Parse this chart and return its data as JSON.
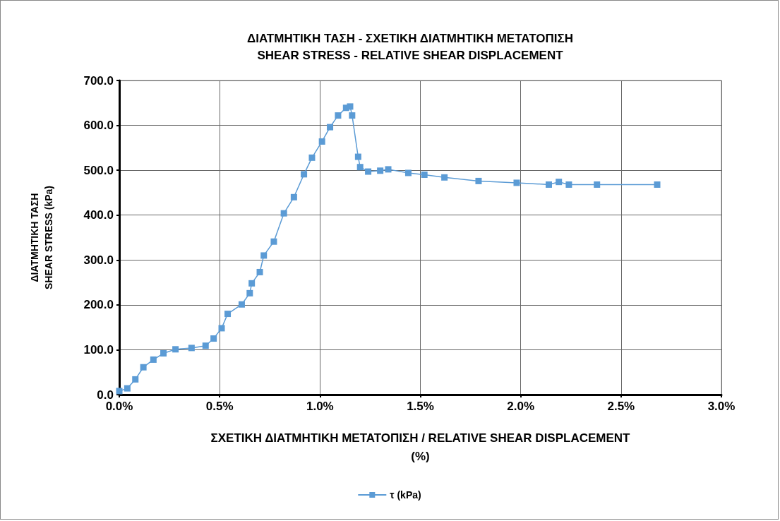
{
  "chart_data": {
    "type": "line",
    "title": "ΔΙΑΤΜΗΤΙΚΗ ΤΑΣΗ - ΣΧΕΤΙΚΗ ΔΙΑΤΜΗΤΙΚΗ ΜΕΤΑΤΟΠΙΣΗ\nSHEAR STRESS - RELATIVE SHEAR DISPLACEMENT",
    "xlabel": "ΣΧΕΤΙΚΗ ΔΙΑΤΜΗΤΙΚΗ ΜΕΤΑΤΟΠΙΣΗ / RELATIVE SHEAR DISPLACEMENT\n(%)",
    "ylabel": "ΔΙΑΤΜΗΤΙΚΗ ΤΑΣΗ\nSHEAR STRESS (kPa)",
    "series": [
      {
        "name": "τ (kPa)",
        "color": "#5b9bd5",
        "x": [
          0,
          0.04,
          0.08,
          0.12,
          0.17,
          0.22,
          0.28,
          0.36,
          0.43,
          0.47,
          0.51,
          0.54,
          0.61,
          0.65,
          0.66,
          0.7,
          0.72,
          0.77,
          0.82,
          0.87,
          0.92,
          0.96,
          1.01,
          1.05,
          1.09,
          1.13,
          1.15,
          1.16,
          1.19,
          1.2,
          1.24,
          1.3,
          1.34,
          1.44,
          1.52,
          1.62,
          1.79,
          1.98,
          2.14,
          2.19,
          2.24,
          2.38,
          2.68
        ],
        "values": [
          8,
          14,
          34,
          61,
          78,
          92,
          101,
          104,
          109,
          125,
          148,
          180,
          201,
          226,
          248,
          273,
          310,
          341,
          404,
          440,
          491,
          528,
          564,
          596,
          622,
          639,
          642,
          622,
          530,
          507,
          497,
          499,
          502,
          494,
          490,
          484,
          476,
          472,
          468,
          474,
          468,
          468,
          468
        ]
      }
    ],
    "xlim": [
      0,
      3
    ],
    "xticks": [
      {
        "value": 0,
        "label": "0.0%"
      },
      {
        "value": 0.5,
        "label": "0.5%"
      },
      {
        "value": 1,
        "label": "1.0%"
      },
      {
        "value": 1.5,
        "label": "1.5%"
      },
      {
        "value": 2,
        "label": "2.0%"
      },
      {
        "value": 2.5,
        "label": "2.5%"
      },
      {
        "value": 3,
        "label": "3.0%"
      }
    ],
    "ylim": [
      0,
      700
    ],
    "yticks": [
      {
        "value": 0,
        "label": "0.0"
      },
      {
        "value": 100,
        "label": "100.0"
      },
      {
        "value": 200,
        "label": "200.0"
      },
      {
        "value": 300,
        "label": "300.0"
      },
      {
        "value": 400,
        "label": "400.0"
      },
      {
        "value": 500,
        "label": "500.0"
      },
      {
        "value": 600,
        "label": "600.0"
      },
      {
        "value": 700,
        "label": "700.0"
      }
    ],
    "grid": true,
    "legend": "bottom",
    "marker": "square",
    "line_style": "solid"
  }
}
